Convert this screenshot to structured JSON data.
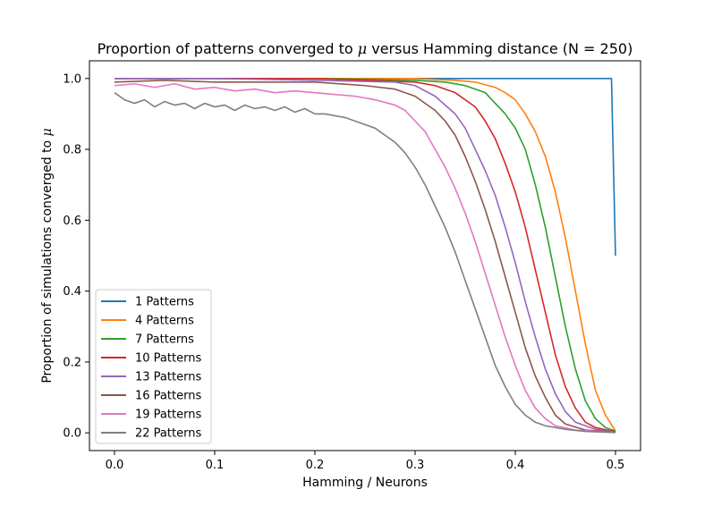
{
  "chart_data": {
    "type": "line",
    "title": "Proportion of patterns converged to μ versus Hamming distance (N = 250)",
    "title_parts": [
      "Proportion of patterns converged to ",
      "μ",
      " versus Hamming distance (N = 250)"
    ],
    "xlabel": "Hamming / Neurons",
    "ylabel": "Proportion of simulations converged to μ",
    "ylabel_parts": [
      "Proportion of simulations converged to ",
      "μ"
    ],
    "xlim": [
      -0.025,
      0.525
    ],
    "ylim": [
      -0.05,
      1.05
    ],
    "xticks": [
      0.0,
      0.1,
      0.2,
      0.3,
      0.4,
      0.5
    ],
    "xtick_labels": [
      "0.0",
      "0.1",
      "0.2",
      "0.3",
      "0.4",
      "0.5"
    ],
    "yticks": [
      0.0,
      0.2,
      0.4,
      0.6,
      0.8,
      1.0
    ],
    "ytick_labels": [
      "0.0",
      "0.2",
      "0.4",
      "0.6",
      "0.8",
      "1.0"
    ],
    "grid": false,
    "legend_position": "lower-left",
    "series": [
      {
        "name": "1 Patterns",
        "color": "#1f77b4",
        "points": [
          [
            0.0,
            1.0
          ],
          [
            0.1,
            1.0
          ],
          [
            0.2,
            1.0
          ],
          [
            0.3,
            1.0
          ],
          [
            0.4,
            1.0
          ],
          [
            0.496,
            1.0
          ],
          [
            0.5,
            0.5
          ]
        ]
      },
      {
        "name": "4 Patterns",
        "color": "#ff7f0e",
        "points": [
          [
            0.0,
            1.0
          ],
          [
            0.2,
            1.0
          ],
          [
            0.3,
            1.0
          ],
          [
            0.34,
            0.995
          ],
          [
            0.36,
            0.99
          ],
          [
            0.38,
            0.975
          ],
          [
            0.39,
            0.96
          ],
          [
            0.4,
            0.94
          ],
          [
            0.41,
            0.9
          ],
          [
            0.42,
            0.85
          ],
          [
            0.43,
            0.78
          ],
          [
            0.44,
            0.68
          ],
          [
            0.45,
            0.55
          ],
          [
            0.46,
            0.4
          ],
          [
            0.47,
            0.25
          ],
          [
            0.48,
            0.12
          ],
          [
            0.49,
            0.05
          ],
          [
            0.5,
            0.005
          ]
        ]
      },
      {
        "name": "7 Patterns",
        "color": "#2ca02c",
        "points": [
          [
            0.0,
            1.0
          ],
          [
            0.2,
            1.0
          ],
          [
            0.3,
            0.995
          ],
          [
            0.33,
            0.99
          ],
          [
            0.35,
            0.98
          ],
          [
            0.37,
            0.96
          ],
          [
            0.38,
            0.93
          ],
          [
            0.39,
            0.9
          ],
          [
            0.4,
            0.86
          ],
          [
            0.41,
            0.8
          ],
          [
            0.42,
            0.7
          ],
          [
            0.43,
            0.58
          ],
          [
            0.44,
            0.44
          ],
          [
            0.45,
            0.3
          ],
          [
            0.46,
            0.18
          ],
          [
            0.47,
            0.09
          ],
          [
            0.48,
            0.04
          ],
          [
            0.49,
            0.015
          ],
          [
            0.5,
            0.005
          ]
        ]
      },
      {
        "name": "10 Patterns",
        "color": "#d62728",
        "points": [
          [
            0.0,
            1.0
          ],
          [
            0.2,
            1.0
          ],
          [
            0.3,
            0.99
          ],
          [
            0.32,
            0.98
          ],
          [
            0.34,
            0.96
          ],
          [
            0.36,
            0.92
          ],
          [
            0.37,
            0.88
          ],
          [
            0.38,
            0.83
          ],
          [
            0.39,
            0.76
          ],
          [
            0.4,
            0.68
          ],
          [
            0.41,
            0.58
          ],
          [
            0.42,
            0.46
          ],
          [
            0.43,
            0.34
          ],
          [
            0.44,
            0.22
          ],
          [
            0.45,
            0.13
          ],
          [
            0.46,
            0.07
          ],
          [
            0.47,
            0.03
          ],
          [
            0.48,
            0.015
          ],
          [
            0.5,
            0.003
          ]
        ]
      },
      {
        "name": "13 Patterns",
        "color": "#9467bd",
        "points": [
          [
            0.0,
            1.0
          ],
          [
            0.1,
            1.0
          ],
          [
            0.2,
            0.995
          ],
          [
            0.28,
            0.99
          ],
          [
            0.3,
            0.98
          ],
          [
            0.32,
            0.95
          ],
          [
            0.34,
            0.9
          ],
          [
            0.35,
            0.86
          ],
          [
            0.36,
            0.8
          ],
          [
            0.37,
            0.74
          ],
          [
            0.38,
            0.67
          ],
          [
            0.39,
            0.58
          ],
          [
            0.4,
            0.48
          ],
          [
            0.41,
            0.37
          ],
          [
            0.42,
            0.27
          ],
          [
            0.43,
            0.18
          ],
          [
            0.44,
            0.11
          ],
          [
            0.45,
            0.06
          ],
          [
            0.46,
            0.03
          ],
          [
            0.48,
            0.01
          ],
          [
            0.5,
            0.002
          ]
        ]
      },
      {
        "name": "16 Patterns",
        "color": "#8c564b",
        "points": [
          [
            0.0,
            0.99
          ],
          [
            0.05,
            0.995
          ],
          [
            0.1,
            0.99
          ],
          [
            0.15,
            0.99
          ],
          [
            0.2,
            0.99
          ],
          [
            0.25,
            0.98
          ],
          [
            0.28,
            0.97
          ],
          [
            0.3,
            0.95
          ],
          [
            0.32,
            0.91
          ],
          [
            0.33,
            0.88
          ],
          [
            0.34,
            0.84
          ],
          [
            0.35,
            0.78
          ],
          [
            0.36,
            0.71
          ],
          [
            0.37,
            0.63
          ],
          [
            0.38,
            0.54
          ],
          [
            0.39,
            0.44
          ],
          [
            0.4,
            0.34
          ],
          [
            0.41,
            0.24
          ],
          [
            0.42,
            0.16
          ],
          [
            0.43,
            0.1
          ],
          [
            0.44,
            0.05
          ],
          [
            0.45,
            0.025
          ],
          [
            0.47,
            0.008
          ],
          [
            0.5,
            0.002
          ]
        ]
      },
      {
        "name": "19 Patterns",
        "color": "#e377c2",
        "points": [
          [
            0.0,
            0.98
          ],
          [
            0.02,
            0.985
          ],
          [
            0.04,
            0.975
          ],
          [
            0.06,
            0.985
          ],
          [
            0.08,
            0.97
          ],
          [
            0.1,
            0.975
          ],
          [
            0.12,
            0.965
          ],
          [
            0.14,
            0.97
          ],
          [
            0.16,
            0.96
          ],
          [
            0.18,
            0.965
          ],
          [
            0.2,
            0.96
          ],
          [
            0.22,
            0.955
          ],
          [
            0.24,
            0.95
          ],
          [
            0.26,
            0.94
          ],
          [
            0.28,
            0.925
          ],
          [
            0.29,
            0.91
          ],
          [
            0.3,
            0.88
          ],
          [
            0.31,
            0.85
          ],
          [
            0.32,
            0.8
          ],
          [
            0.33,
            0.75
          ],
          [
            0.34,
            0.69
          ],
          [
            0.35,
            0.62
          ],
          [
            0.36,
            0.54
          ],
          [
            0.37,
            0.45
          ],
          [
            0.38,
            0.36
          ],
          [
            0.39,
            0.27
          ],
          [
            0.4,
            0.19
          ],
          [
            0.41,
            0.12
          ],
          [
            0.42,
            0.07
          ],
          [
            0.43,
            0.04
          ],
          [
            0.44,
            0.02
          ],
          [
            0.46,
            0.008
          ],
          [
            0.5,
            0.001
          ]
        ]
      },
      {
        "name": "22 Patterns",
        "color": "#7f7f7f",
        "points": [
          [
            0.0,
            0.96
          ],
          [
            0.01,
            0.94
          ],
          [
            0.02,
            0.93
          ],
          [
            0.03,
            0.94
          ],
          [
            0.04,
            0.92
          ],
          [
            0.05,
            0.935
          ],
          [
            0.06,
            0.925
          ],
          [
            0.07,
            0.93
          ],
          [
            0.08,
            0.915
          ],
          [
            0.09,
            0.93
          ],
          [
            0.1,
            0.92
          ],
          [
            0.11,
            0.925
          ],
          [
            0.12,
            0.91
          ],
          [
            0.13,
            0.925
          ],
          [
            0.14,
            0.915
          ],
          [
            0.15,
            0.92
          ],
          [
            0.16,
            0.91
          ],
          [
            0.17,
            0.92
          ],
          [
            0.18,
            0.905
          ],
          [
            0.19,
            0.915
          ],
          [
            0.2,
            0.9
          ],
          [
            0.21,
            0.9
          ],
          [
            0.22,
            0.895
          ],
          [
            0.23,
            0.89
          ],
          [
            0.24,
            0.88
          ],
          [
            0.25,
            0.87
          ],
          [
            0.26,
            0.86
          ],
          [
            0.27,
            0.84
          ],
          [
            0.28,
            0.82
          ],
          [
            0.29,
            0.79
          ],
          [
            0.3,
            0.75
          ],
          [
            0.31,
            0.7
          ],
          [
            0.32,
            0.64
          ],
          [
            0.33,
            0.58
          ],
          [
            0.34,
            0.51
          ],
          [
            0.35,
            0.43
          ],
          [
            0.36,
            0.35
          ],
          [
            0.37,
            0.27
          ],
          [
            0.38,
            0.19
          ],
          [
            0.39,
            0.13
          ],
          [
            0.4,
            0.08
          ],
          [
            0.41,
            0.05
          ],
          [
            0.42,
            0.03
          ],
          [
            0.43,
            0.02
          ],
          [
            0.45,
            0.01
          ],
          [
            0.47,
            0.004
          ],
          [
            0.5,
            0.001
          ]
        ]
      }
    ]
  }
}
